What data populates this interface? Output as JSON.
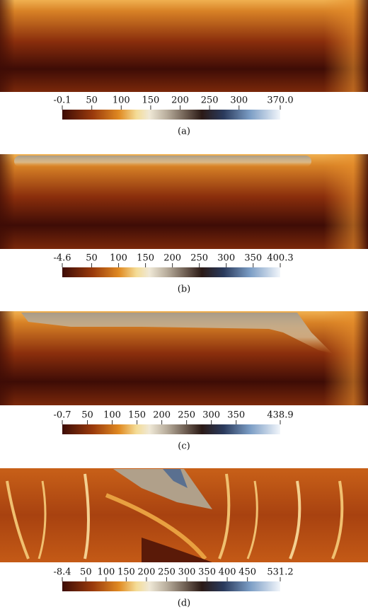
{
  "panels": [
    {
      "caption": "(a)",
      "colorbar": {
        "lim": [
          -0.1,
          370
        ],
        "ticks": [
          -0.1,
          50,
          100,
          150,
          200,
          250,
          300,
          {
            "value": 370,
            "label": "370.0"
          }
        ]
      }
    },
    {
      "caption": "(b)",
      "colorbar": {
        "lim": [
          -4.6,
          400.3
        ],
        "ticks": [
          -4.6,
          50,
          100,
          150,
          200,
          250,
          300,
          350,
          400.3
        ]
      }
    },
    {
      "caption": "(c)",
      "colorbar": {
        "lim": [
          -0.7,
          438.9
        ],
        "ticks": [
          -0.7,
          50,
          100,
          150,
          200,
          250,
          300,
          350,
          438.9
        ]
      }
    },
    {
      "caption": "(d)",
      "colorbar": {
        "lim": [
          -8.4,
          531.2
        ],
        "ticks": [
          -8.4,
          50,
          100,
          150,
          200,
          250,
          300,
          350,
          400,
          450,
          531.2
        ]
      }
    }
  ]
}
